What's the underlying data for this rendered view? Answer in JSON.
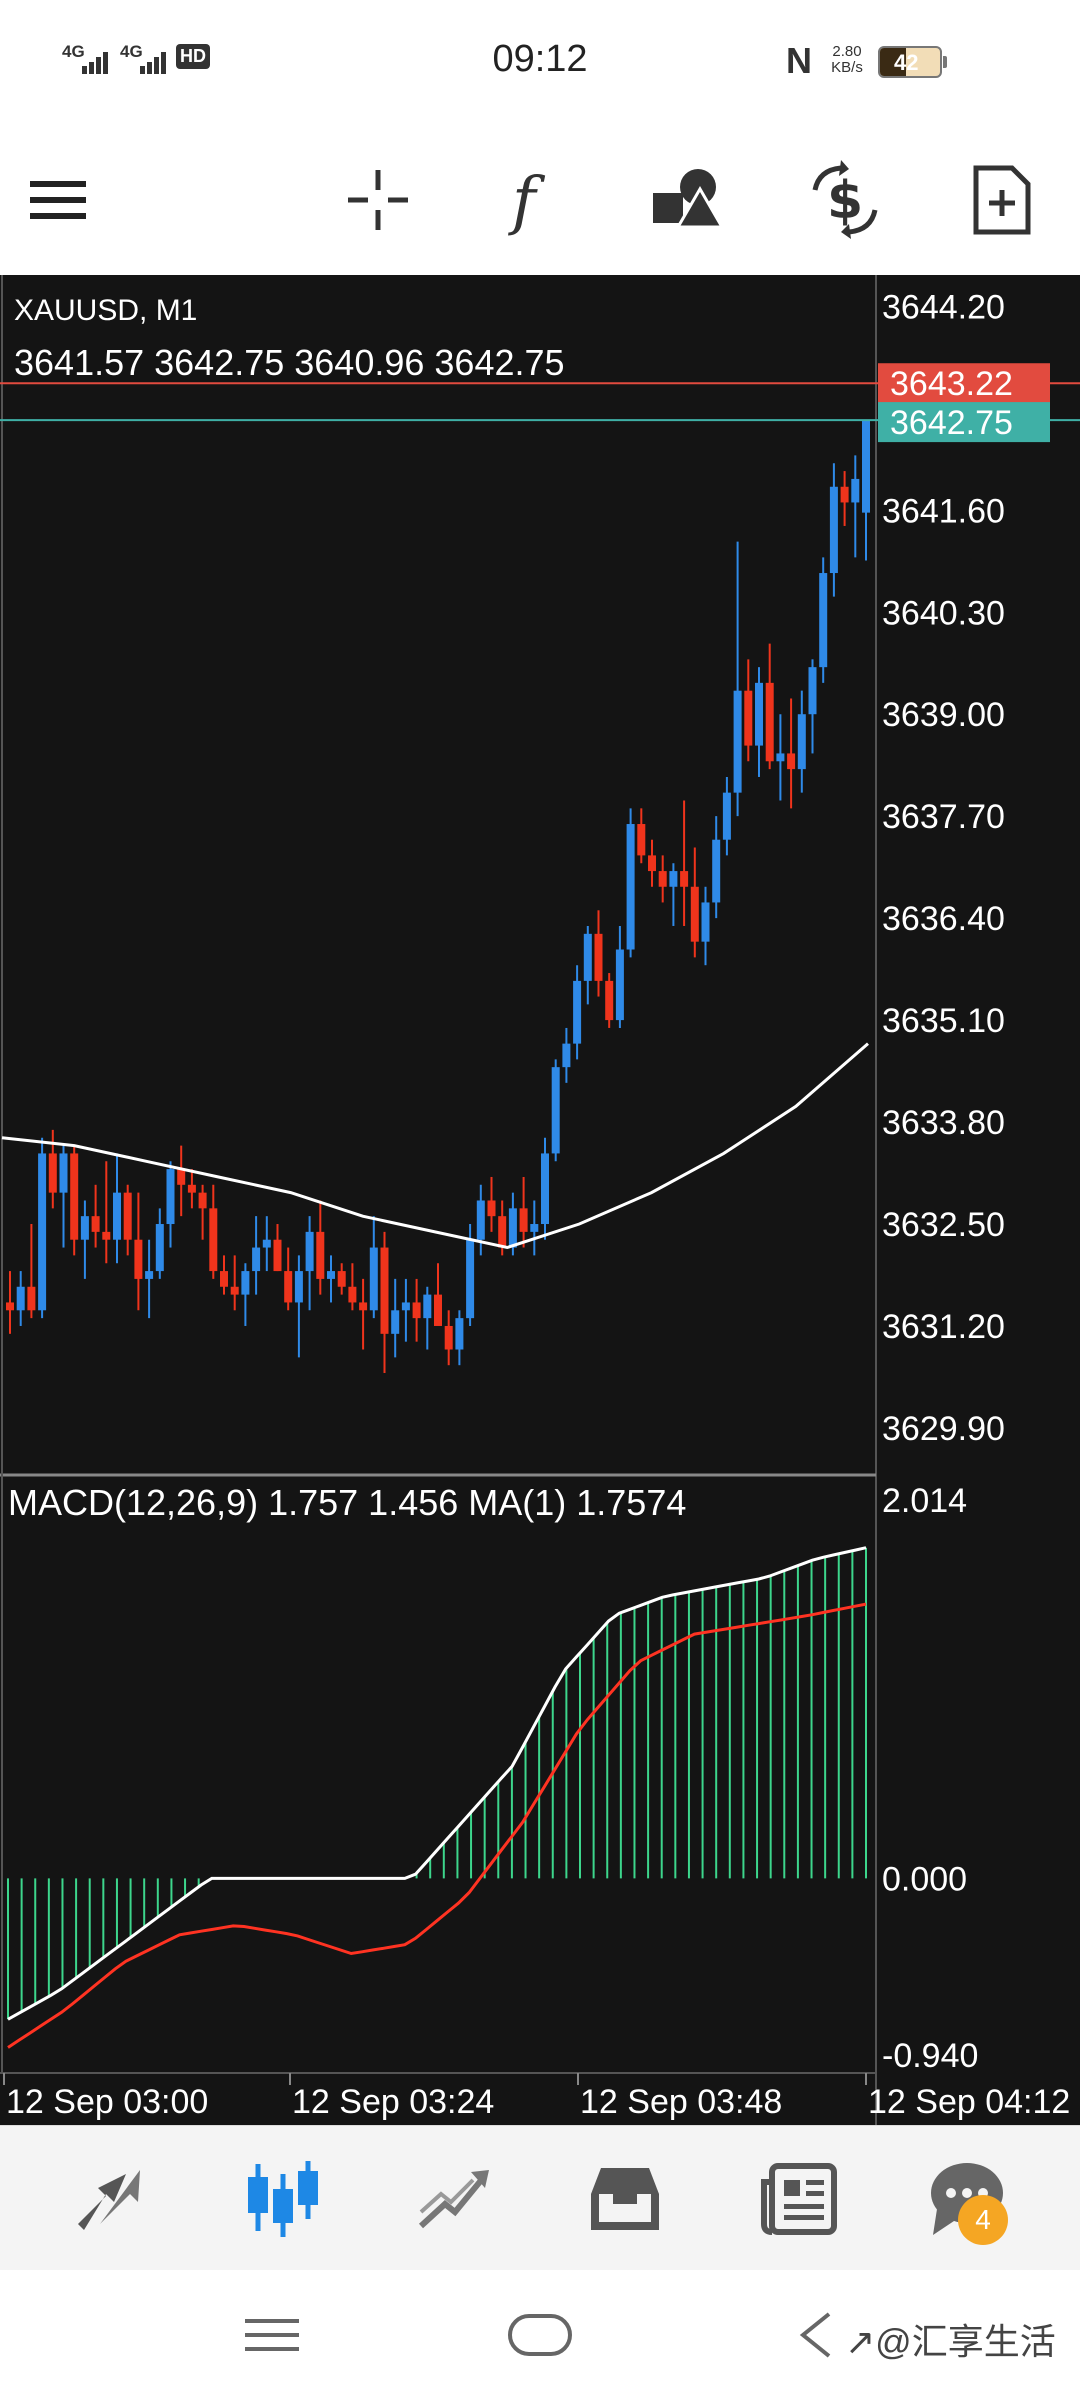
{
  "status_bar": {
    "time": "09:12",
    "signal1": "4G",
    "signal2": "4G",
    "hd": "HD",
    "net_speed_value": "2.80",
    "net_speed_unit": "KB/s",
    "battery": "42"
  },
  "toolbar": {
    "icons": [
      "menu-icon",
      "crosshair-icon",
      "function-icon",
      "objects-icon",
      "trade-icon",
      "new-document-icon"
    ]
  },
  "chart": {
    "symbol": "XAUUSD, M1",
    "ohlc": "3641.57 3642.75 3640.96 3642.75",
    "price_axis": [
      "3644.20",
      "3641.60",
      "3640.30",
      "3639.00",
      "3637.70",
      "3636.40",
      "3635.10",
      "3633.80",
      "3632.50",
      "3631.20",
      "3629.90"
    ],
    "ask_label": "3643.22",
    "bid_label": "3642.75",
    "indicator_label": "MACD(12,26,9) 1.757 1.456 MA(1) 1.7574",
    "macd_axis": [
      "2.014",
      "0.000",
      "-0.940"
    ],
    "time_axis": [
      "12 Sep 03:00",
      "12 Sep 03:24",
      "12 Sep 03:48",
      "12 Sep 04:12"
    ],
    "colors": {
      "bg": "#141414",
      "bull": "#2f8ae8",
      "bear": "#f0341c",
      "ask_line": "#e24b3f",
      "bid_line": "#3fb0a6",
      "ma": "#ffffff",
      "histogram": "#3dd68c",
      "signal": "#ff3322"
    }
  },
  "chart_data": {
    "type": "candlestick",
    "symbol": "XAUUSD",
    "timeframe": "M1",
    "ylim": [
      3629.3,
      3644.6
    ],
    "candles_ohlc": [
      [
        3631.5,
        3631.9,
        3631.1,
        3631.4
      ],
      [
        3631.4,
        3631.9,
        3631.2,
        3631.7
      ],
      [
        3631.7,
        3632.5,
        3631.3,
        3631.4
      ],
      [
        3631.4,
        3633.6,
        3631.3,
        3633.4
      ],
      [
        3633.4,
        3633.7,
        3632.7,
        3632.9
      ],
      [
        3632.9,
        3633.5,
        3632.2,
        3633.4
      ],
      [
        3633.4,
        3633.5,
        3632.1,
        3632.3
      ],
      [
        3632.3,
        3632.8,
        3631.8,
        3632.6
      ],
      [
        3632.6,
        3633.0,
        3632.2,
        3632.4
      ],
      [
        3632.4,
        3633.3,
        3632.0,
        3632.3
      ],
      [
        3632.3,
        3633.4,
        3632.0,
        3632.9
      ],
      [
        3632.9,
        3633.0,
        3632.1,
        3632.3
      ],
      [
        3632.3,
        3632.9,
        3631.4,
        3631.8
      ],
      [
        3631.8,
        3632.3,
        3631.3,
        3631.9
      ],
      [
        3631.9,
        3632.7,
        3631.8,
        3632.5
      ],
      [
        3632.5,
        3633.3,
        3632.2,
        3633.2
      ],
      [
        3633.2,
        3633.5,
        3632.6,
        3633.0
      ],
      [
        3633.0,
        3633.2,
        3632.7,
        3632.9
      ],
      [
        3632.9,
        3633.0,
        3632.3,
        3632.7
      ],
      [
        3632.7,
        3633.0,
        3631.8,
        3631.9
      ],
      [
        3631.9,
        3632.1,
        3631.6,
        3631.7
      ],
      [
        3631.7,
        3632.1,
        3631.4,
        3631.6
      ],
      [
        3631.6,
        3632.0,
        3631.2,
        3631.9
      ],
      [
        3631.9,
        3632.6,
        3631.6,
        3632.2
      ],
      [
        3632.2,
        3632.6,
        3631.9,
        3632.3
      ],
      [
        3632.3,
        3632.5,
        3631.9,
        3631.9
      ],
      [
        3631.9,
        3632.2,
        3631.4,
        3631.5
      ],
      [
        3631.5,
        3632.1,
        3630.8,
        3631.9
      ],
      [
        3631.9,
        3632.6,
        3631.4,
        3632.4
      ],
      [
        3632.4,
        3632.8,
        3631.6,
        3631.8
      ],
      [
        3631.8,
        3632.1,
        3631.5,
        3631.9
      ],
      [
        3631.9,
        3632.0,
        3631.6,
        3631.7
      ],
      [
        3631.7,
        3632.0,
        3631.4,
        3631.5
      ],
      [
        3631.5,
        3631.8,
        3630.9,
        3631.4
      ],
      [
        3631.4,
        3632.6,
        3631.3,
        3632.2
      ],
      [
        3632.2,
        3632.4,
        3630.6,
        3631.1
      ],
      [
        3631.1,
        3631.8,
        3630.8,
        3631.4
      ],
      [
        3631.4,
        3631.8,
        3631.0,
        3631.5
      ],
      [
        3631.5,
        3631.8,
        3631.0,
        3631.3
      ],
      [
        3631.3,
        3631.7,
        3630.9,
        3631.6
      ],
      [
        3631.6,
        3632.0,
        3631.3,
        3631.2
      ],
      [
        3631.2,
        3631.4,
        3630.7,
        3630.9
      ],
      [
        3630.9,
        3631.4,
        3630.7,
        3631.3
      ],
      [
        3631.3,
        3632.5,
        3631.2,
        3632.3
      ],
      [
        3632.3,
        3633.0,
        3632.1,
        3632.8
      ],
      [
        3632.8,
        3633.1,
        3632.4,
        3632.6
      ],
      [
        3632.6,
        3632.8,
        3632.1,
        3632.2
      ],
      [
        3632.2,
        3632.9,
        3632.1,
        3632.7
      ],
      [
        3632.7,
        3633.1,
        3632.2,
        3632.4
      ],
      [
        3632.4,
        3632.8,
        3632.1,
        3632.5
      ],
      [
        3632.5,
        3633.6,
        3632.3,
        3633.4
      ],
      [
        3633.4,
        3634.6,
        3633.3,
        3634.5
      ],
      [
        3634.5,
        3635.0,
        3634.3,
        3634.8
      ],
      [
        3634.8,
        3635.8,
        3634.6,
        3635.6
      ],
      [
        3635.6,
        3636.3,
        3635.3,
        3636.2
      ],
      [
        3636.2,
        3636.5,
        3635.4,
        3635.6
      ],
      [
        3635.6,
        3635.7,
        3635.0,
        3635.1
      ],
      [
        3635.1,
        3636.3,
        3635.0,
        3636.0
      ],
      [
        3636.0,
        3637.8,
        3635.9,
        3637.6
      ],
      [
        3637.6,
        3637.8,
        3637.1,
        3637.2
      ],
      [
        3637.2,
        3637.4,
        3636.8,
        3637.0
      ],
      [
        3637.0,
        3637.2,
        3636.6,
        3636.8
      ],
      [
        3636.8,
        3637.1,
        3636.3,
        3637.0
      ],
      [
        3637.0,
        3637.9,
        3636.3,
        3636.8
      ],
      [
        3636.8,
        3637.3,
        3635.9,
        3636.1
      ],
      [
        3636.1,
        3636.8,
        3635.8,
        3636.6
      ],
      [
        3636.6,
        3637.7,
        3636.4,
        3637.4
      ],
      [
        3637.4,
        3638.2,
        3637.2,
        3638.0
      ],
      [
        3638.0,
        3641.2,
        3637.7,
        3639.3
      ],
      [
        3639.3,
        3639.7,
        3638.4,
        3638.6
      ],
      [
        3638.6,
        3639.6,
        3638.2,
        3639.4
      ],
      [
        3639.4,
        3639.9,
        3638.3,
        3638.4
      ],
      [
        3638.4,
        3639.0,
        3637.9,
        3638.5
      ],
      [
        3638.5,
        3639.2,
        3637.8,
        3638.3
      ],
      [
        3638.3,
        3639.3,
        3638.0,
        3639.0
      ],
      [
        3639.0,
        3639.7,
        3638.5,
        3639.6
      ],
      [
        3639.6,
        3641.0,
        3639.4,
        3640.8
      ],
      [
        3640.8,
        3642.2,
        3640.5,
        3641.9
      ],
      [
        3641.9,
        3642.1,
        3641.4,
        3641.7
      ],
      [
        3641.7,
        3642.3,
        3641.0,
        3642.0
      ],
      [
        3641.57,
        3642.75,
        3640.96,
        3642.75
      ]
    ],
    "ma_line": [
      3633.6,
      3633.5,
      3633.3,
      3633.1,
      3632.9,
      3632.6,
      3632.4,
      3632.2,
      3632.5,
      3632.9,
      3633.4,
      3634.0,
      3634.8
    ],
    "macd_histogram": [
      -0.75,
      -0.6,
      -0.4,
      -0.2,
      0.0,
      0.0,
      0.0,
      0.0,
      0.0,
      0.3,
      0.6,
      1.1,
      1.4,
      1.5,
      1.55,
      1.6,
      1.7,
      1.76
    ],
    "macd_signal": [
      -0.9,
      -0.7,
      -0.45,
      -0.3,
      -0.25,
      -0.3,
      -0.4,
      -0.35,
      -0.1,
      0.3,
      0.8,
      1.15,
      1.3,
      1.35,
      1.4,
      1.46
    ],
    "macd_ylim": [
      -0.94,
      2.014
    ],
    "x_labels": [
      "12 Sep 03:00",
      "12 Sep 03:24",
      "12 Sep 03:48",
      "12 Sep 04:12"
    ]
  },
  "tabbar": {
    "tabs": [
      "quotes-tab",
      "chart-tab",
      "trade-tab",
      "history-tab",
      "news-tab",
      "messages-tab"
    ],
    "badge": "4"
  },
  "watermark": "↗@汇享生活"
}
